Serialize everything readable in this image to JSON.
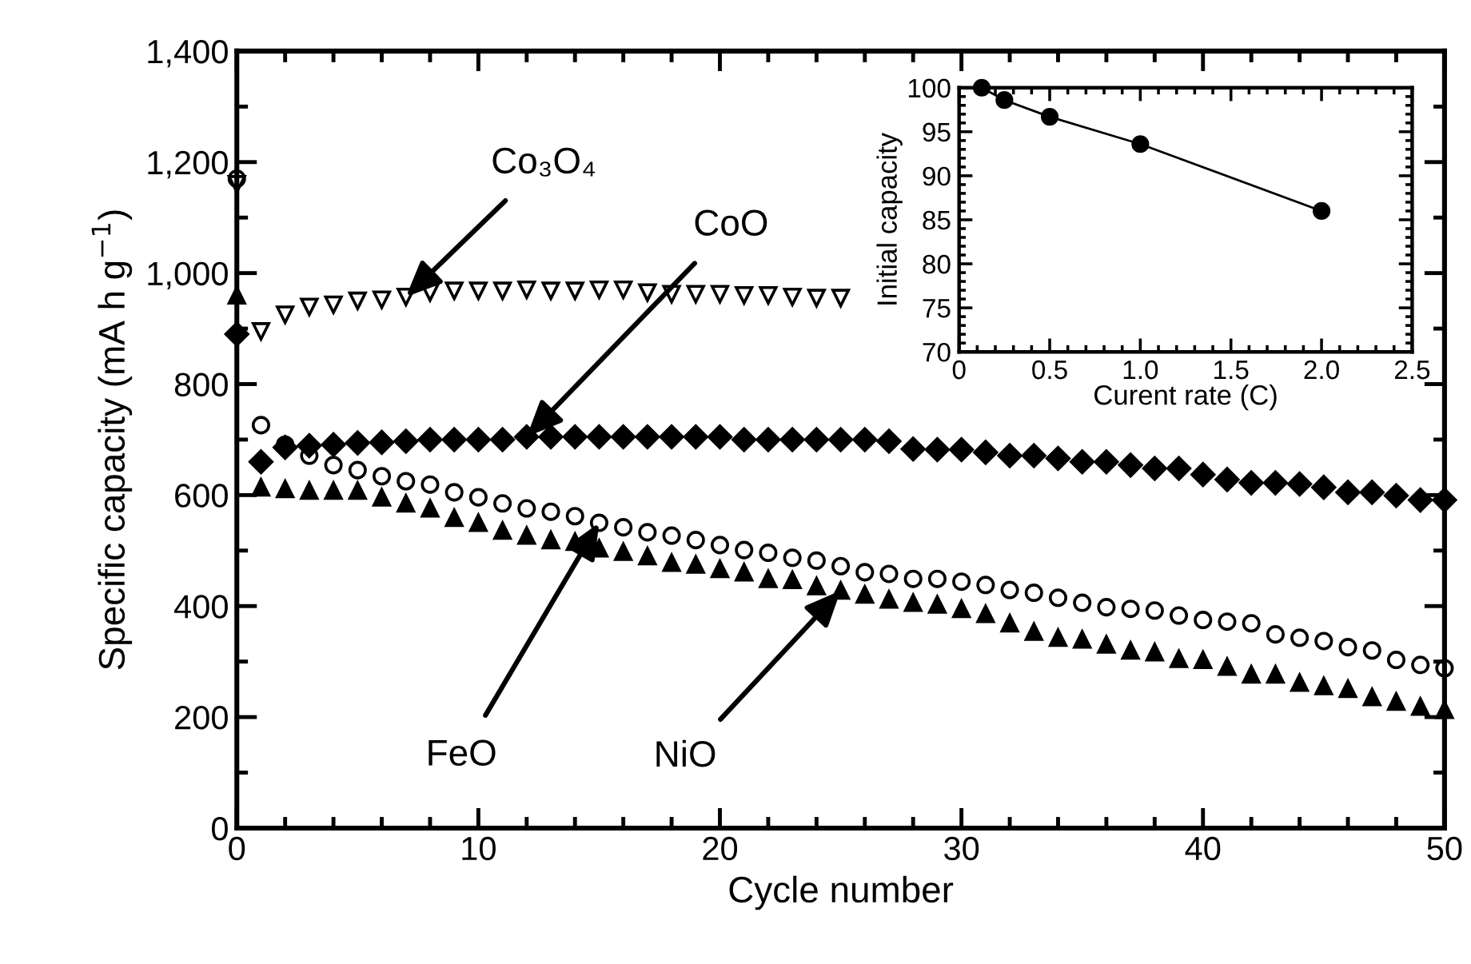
{
  "chart_data": [
    {
      "type": "scatter",
      "xlabel": "Cycle number",
      "ylabel": "Specific capacity (mA h g$^{−1}$)",
      "xlim": [
        0,
        50
      ],
      "xticks": [
        0,
        10,
        20,
        30,
        40,
        50
      ],
      "ylim": [
        0,
        1400
      ],
      "yticks": [
        {
          "value": 0,
          "label": "0"
        },
        {
          "value": 200,
          "label": "200"
        },
        {
          "value": 400,
          "label": "400"
        },
        {
          "value": 600,
          "label": "600"
        },
        {
          "value": 800,
          "label": "800"
        },
        {
          "value": 1000,
          "label": "1,000"
        },
        {
          "value": 1200,
          "label": "1,200"
        },
        {
          "value": 1400,
          "label": "1,400"
        }
      ],
      "grid": false,
      "legend": false,
      "series": [
        {
          "color": "#000000",
          "marker": "triangle-down-open",
          "x": [
            0,
            1,
            2,
            3,
            4,
            5,
            6,
            7,
            8,
            9,
            10,
            11,
            12,
            13,
            14,
            15,
            16,
            17,
            18,
            19,
            20,
            21,
            22,
            23,
            24,
            25
          ],
          "values": [
            1160,
            895,
            925,
            939,
            943,
            950,
            952,
            957,
            965,
            968,
            968,
            968,
            970,
            968,
            968,
            970,
            970,
            965,
            962,
            962,
            962,
            960,
            960,
            957,
            955,
            955
          ]
        },
        {
          "color": "#000000",
          "marker": "diamond",
          "x": [
            0,
            1,
            2,
            3,
            4,
            5,
            6,
            7,
            8,
            9,
            10,
            11,
            12,
            13,
            14,
            15,
            16,
            17,
            18,
            19,
            20,
            21,
            22,
            23,
            24,
            25,
            26,
            27,
            28,
            29,
            30,
            31,
            32,
            33,
            34,
            35,
            36,
            37,
            38,
            39,
            40,
            41,
            42,
            43,
            44,
            45,
            46,
            47,
            48,
            49,
            50
          ],
          "values": [
            890,
            660,
            686,
            689,
            691,
            694,
            695,
            697,
            700,
            700,
            700,
            700,
            705,
            705,
            705,
            705,
            705,
            705,
            705,
            705,
            705,
            700,
            700,
            700,
            700,
            700,
            700,
            697,
            683,
            682,
            682,
            677,
            671,
            671,
            666,
            660,
            660,
            654,
            648,
            648,
            637,
            628,
            622,
            622,
            620,
            614,
            605,
            605,
            599,
            591,
            591
          ]
        },
        {
          "color": "#000000",
          "marker": "circle-open",
          "x": [
            0,
            1,
            2,
            3,
            4,
            5,
            6,
            7,
            8,
            9,
            10,
            11,
            12,
            13,
            14,
            15,
            16,
            17,
            18,
            19,
            20,
            21,
            22,
            23,
            24,
            25,
            26,
            27,
            28,
            29,
            30,
            31,
            32,
            33,
            34,
            35,
            36,
            37,
            38,
            39,
            40,
            41,
            42,
            43,
            44,
            45,
            46,
            47,
            48,
            49,
            50
          ],
          "values": [
            1170,
            726,
            691,
            671,
            654,
            645,
            634,
            625,
            619,
            605,
            596,
            585,
            576,
            570,
            562,
            550,
            542,
            533,
            527,
            519,
            510,
            501,
            496,
            487,
            482,
            472,
            461,
            458,
            449,
            449,
            444,
            438,
            429,
            424,
            415,
            406,
            398,
            395,
            392,
            383,
            375,
            372,
            369,
            349,
            343,
            337,
            326,
            320,
            303,
            294,
            288
          ]
        },
        {
          "color": "#000000",
          "marker": "triangle",
          "x": [
            0,
            1,
            2,
            3,
            4,
            5,
            6,
            7,
            8,
            9,
            10,
            11,
            12,
            13,
            14,
            15,
            16,
            17,
            18,
            19,
            20,
            21,
            22,
            23,
            24,
            25,
            26,
            27,
            28,
            29,
            30,
            31,
            32,
            33,
            34,
            35,
            36,
            37,
            38,
            39,
            40,
            41,
            42,
            43,
            44,
            45,
            46,
            47,
            48,
            49,
            50
          ],
          "values": [
            960,
            614,
            611,
            608,
            608,
            608,
            596,
            585,
            576,
            559,
            550,
            536,
            527,
            519,
            516,
            504,
            498,
            490,
            478,
            475,
            467,
            461,
            449,
            447,
            436,
            428,
            421,
            412,
            406,
            403,
            395,
            386,
            369,
            354,
            343,
            340,
            331,
            320,
            317,
            305,
            303,
            291,
            277,
            277,
            262,
            256,
            251,
            236,
            228,
            219,
            213
          ]
        }
      ],
      "annotations": [
        {
          "text": "Co₃O₄",
          "x": 7,
          "y": 957
        },
        {
          "text": "CoO",
          "x": 12,
          "y": 705
        },
        {
          "text": "FeO",
          "x": 15,
          "y": 550
        },
        {
          "text": "NiO",
          "x": 25,
          "y": 428
        }
      ]
    },
    {
      "type": "line",
      "xlabel": "Curent rate (C)",
      "ylabel": "Initial capacity",
      "xlim": [
        0,
        2.5
      ],
      "xticks": [
        {
          "value": 0,
          "label": "0"
        },
        {
          "value": 0.5,
          "label": "0.5"
        },
        {
          "value": 1.0,
          "label": "1.0"
        },
        {
          "value": 1.5,
          "label": "1.5"
        },
        {
          "value": 2.0,
          "label": "2.0"
        },
        {
          "value": 2.5,
          "label": "2.5"
        }
      ],
      "ylim": [
        70,
        100
      ],
      "yticks": [
        70,
        75,
        80,
        85,
        90,
        95,
        100
      ],
      "grid": false,
      "legend": false,
      "marker": "circle",
      "line_style": "solid",
      "series": [
        {
          "color": "#000000",
          "x": [
            0.125,
            0.25,
            0.5,
            1.0,
            2.0
          ],
          "values": [
            100,
            98.6,
            96.7,
            93.6,
            86.0
          ]
        }
      ]
    }
  ]
}
